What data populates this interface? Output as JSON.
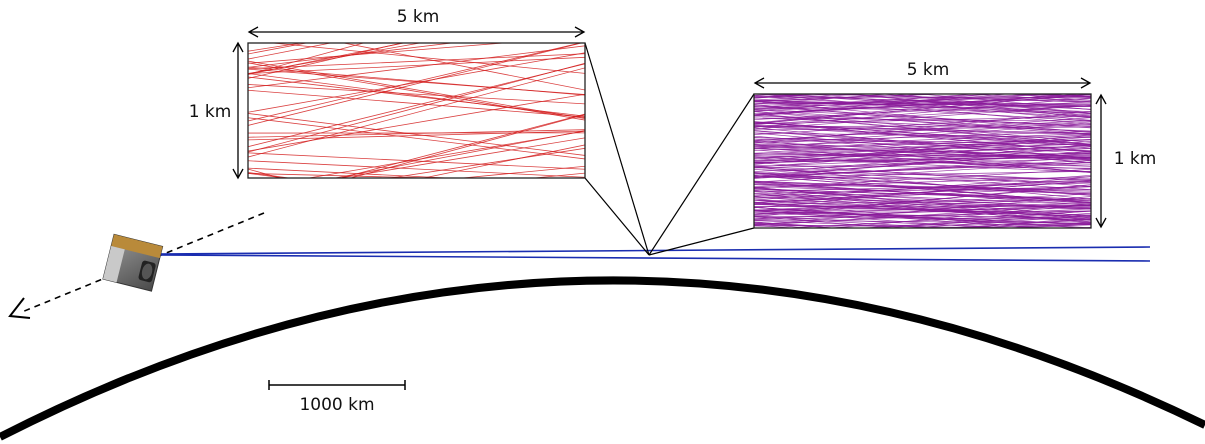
{
  "diagram": {
    "panel_left": {
      "width_label": "5 km",
      "height_label": "1 km",
      "line_color": "#d42020"
    },
    "panel_right": {
      "width_label": "5 km",
      "height_label": "1 km",
      "line_color": "#8a1a9a"
    },
    "beam_color": "#1a2db0",
    "planet_color": "#000000",
    "scale_bar_label": "1000 km",
    "icons": [
      "satellite-icon",
      "trajectory-arrow-icon"
    ]
  }
}
